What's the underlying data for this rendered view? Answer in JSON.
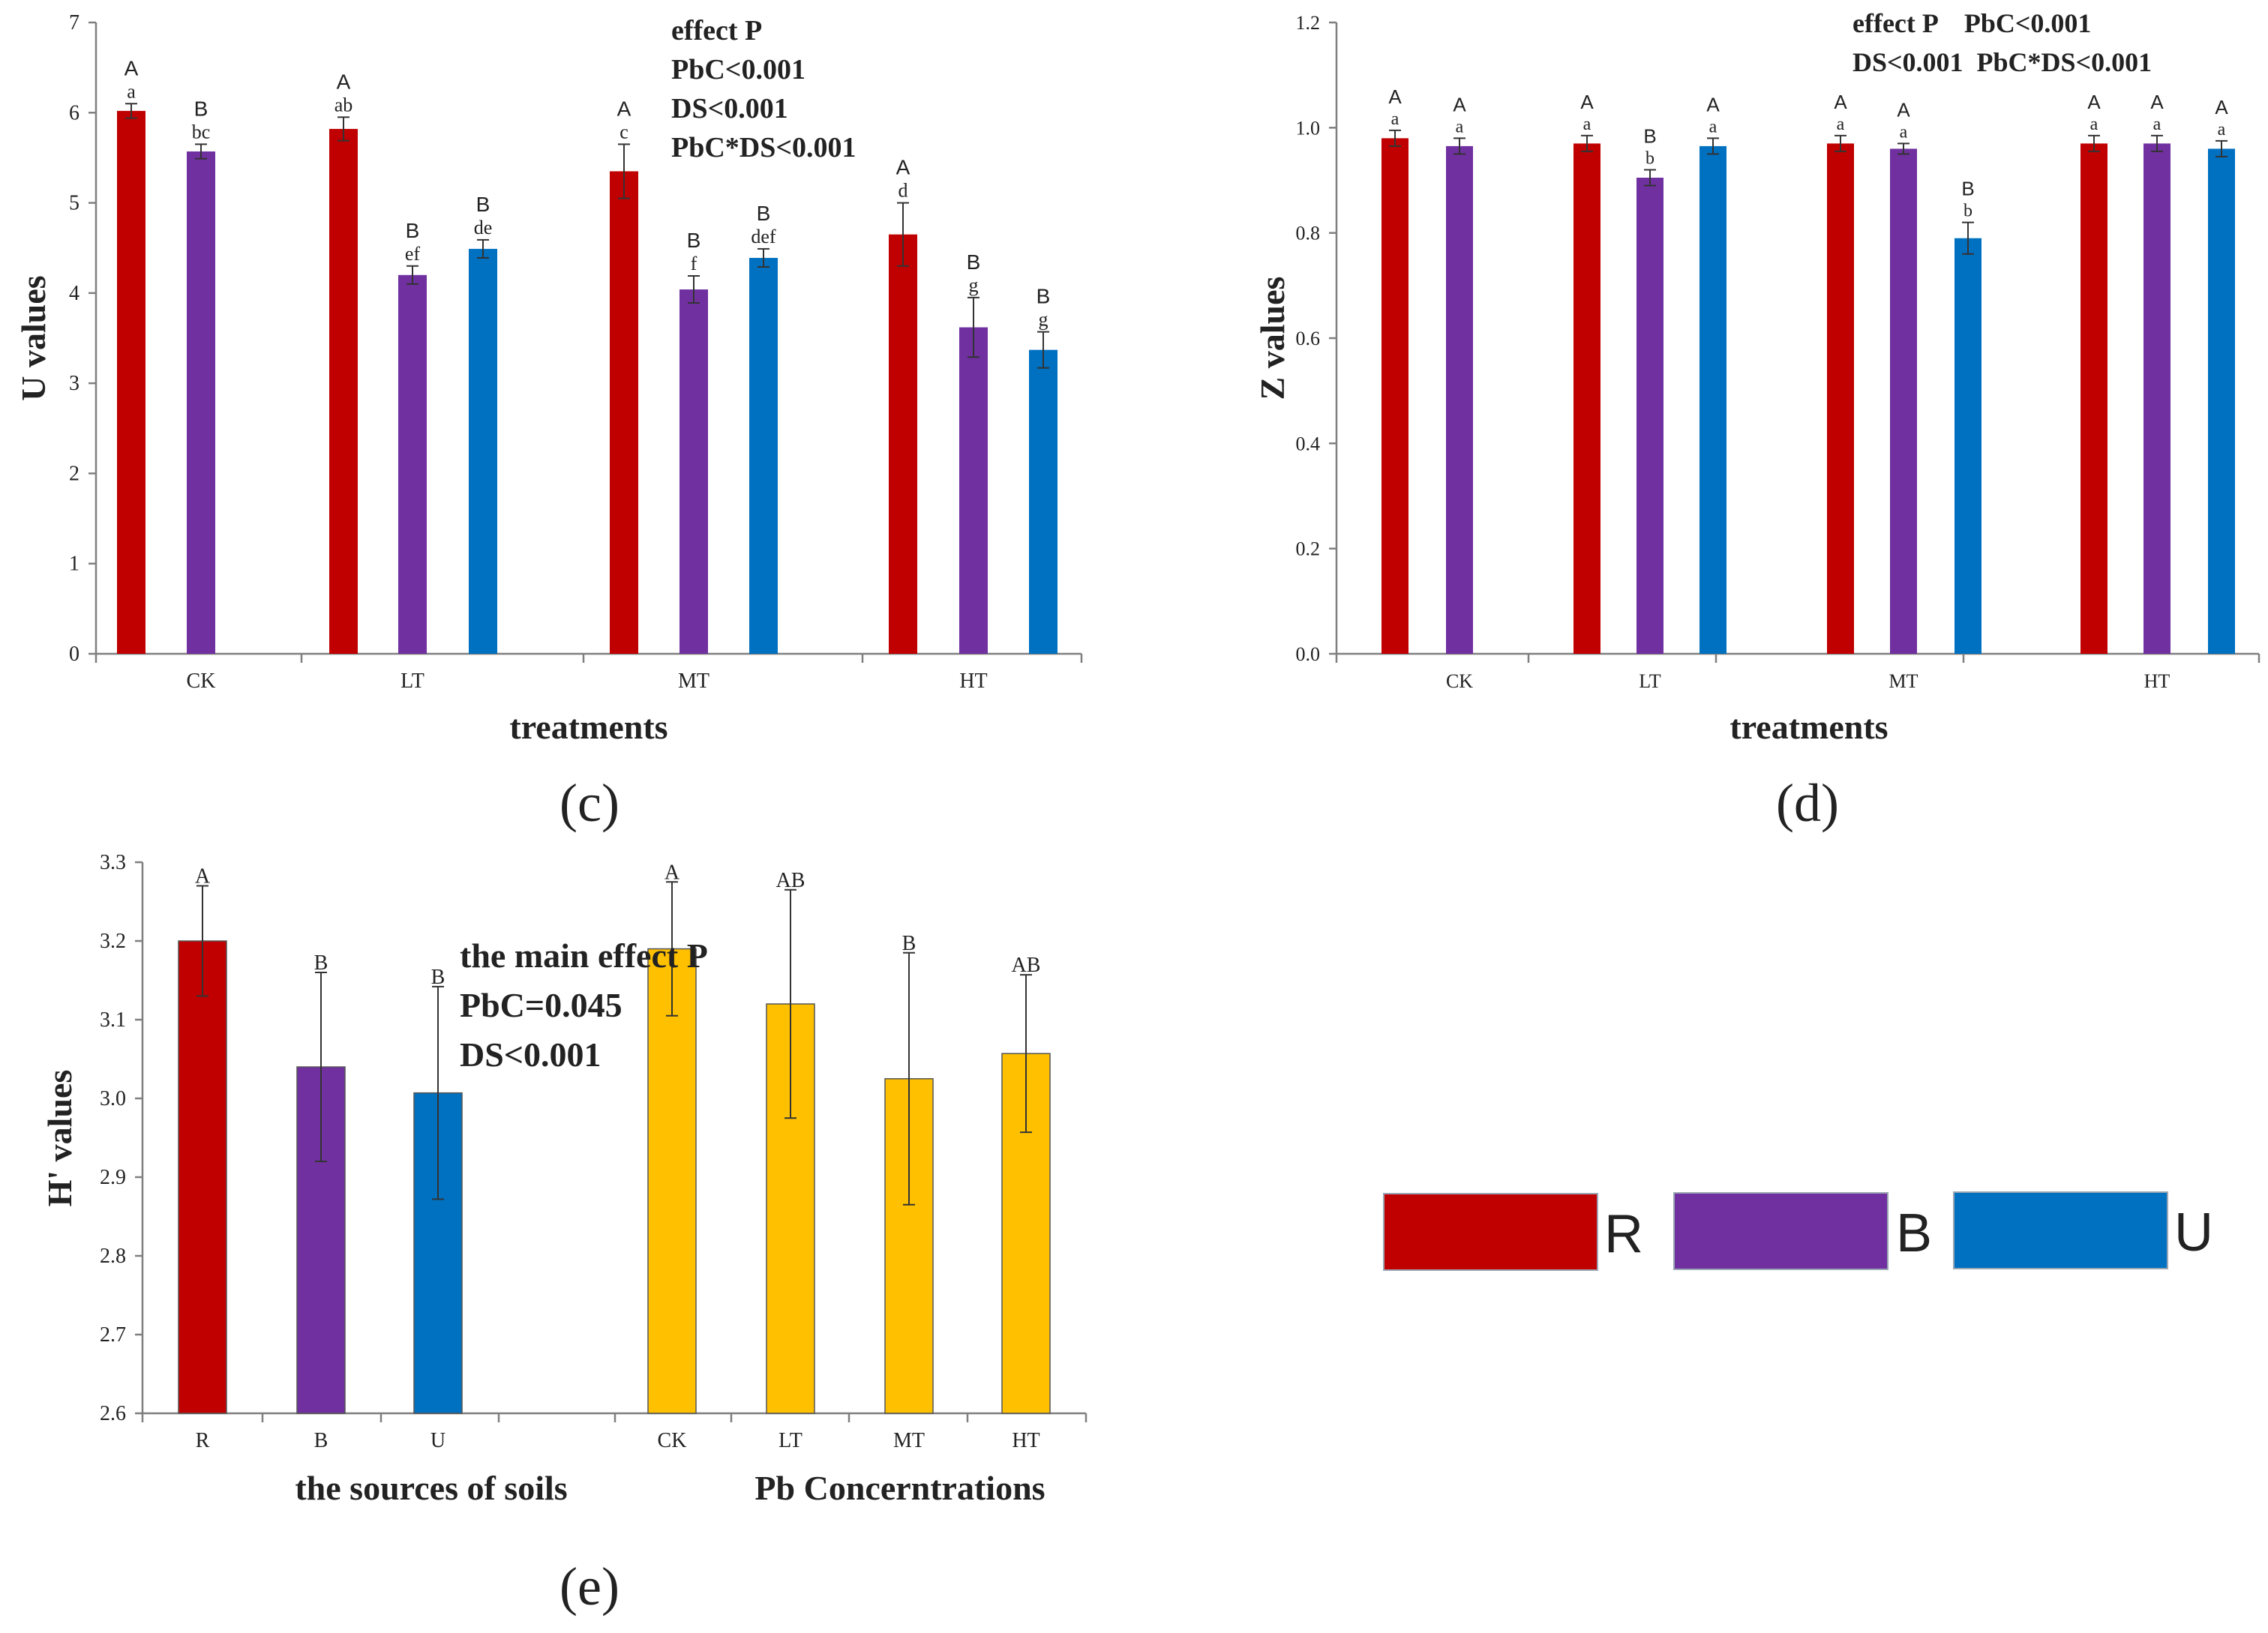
{
  "colors": {
    "R": "#C00000",
    "B": "#7030A0",
    "U": "#0070C0",
    "PbC": "#FFC000"
  },
  "legend": {
    "items": [
      "R",
      "B",
      "U"
    ]
  },
  "chart_data": [
    {
      "id": "c",
      "type": "bar",
      "panel_label": "(c)",
      "xlabel": "treatments",
      "ylabel": "U values",
      "ylim": [
        0,
        7
      ],
      "yticks": [
        "0",
        "1",
        "2",
        "3",
        "4",
        "5",
        "6",
        "7"
      ],
      "categories": [
        "CK",
        "LT",
        "MT",
        "HT"
      ],
      "series": [
        {
          "name": "R",
          "values": [
            6.02,
            5.82,
            5.35,
            4.65
          ],
          "errors": [
            0.08,
            0.13,
            0.3,
            0.35
          ],
          "upper": [
            "A",
            "A",
            "A",
            "A"
          ],
          "lower": [
            "a",
            "ab",
            "c",
            "d"
          ]
        },
        {
          "name": "B",
          "values": [
            5.57,
            4.2,
            4.04,
            3.62
          ],
          "errors": [
            0.08,
            0.1,
            0.15,
            0.33
          ],
          "upper": [
            "B",
            "B",
            "B",
            "B"
          ],
          "lower": [
            "bc",
            "ef",
            "f",
            "g"
          ]
        },
        {
          "name": "U",
          "values": [
            null,
            4.49,
            4.39,
            3.37
          ],
          "errors": [
            null,
            0.1,
            0.1,
            0.2
          ],
          "upper": [
            null,
            "B",
            "B",
            "B"
          ],
          "lower": [
            null,
            "de",
            "def",
            "g"
          ]
        }
      ],
      "annotation": [
        "effect P",
        "PbC<0.001",
        "DS<0.001",
        "PbC*DS<0.001"
      ]
    },
    {
      "id": "d",
      "type": "bar",
      "panel_label": "(d)",
      "xlabel": "treatments",
      "ylabel": "Z values",
      "ylim": [
        0,
        1.2
      ],
      "yticks": [
        "0.0",
        "0.2",
        "0.4",
        "0.6",
        "0.8",
        "1.0",
        "1.2"
      ],
      "categories": [
        "CK",
        "LT",
        "MT",
        "HT"
      ],
      "series": [
        {
          "name": "R",
          "values": [
            0.98,
            0.97,
            0.97,
            0.97
          ],
          "errors": [
            0.015,
            0.015,
            0.015,
            0.015
          ],
          "upper": [
            "A",
            "A",
            "A",
            "A"
          ],
          "lower": [
            "a",
            "a",
            "a",
            "a"
          ]
        },
        {
          "name": "B",
          "values": [
            0.965,
            0.905,
            0.96,
            0.97
          ],
          "errors": [
            0.015,
            0.015,
            0.01,
            0.015
          ],
          "upper": [
            "A",
            "B",
            "A",
            "A"
          ],
          "lower": [
            "a",
            "b",
            "a",
            "a"
          ]
        },
        {
          "name": "U",
          "values": [
            null,
            0.965,
            0.79,
            0.96
          ],
          "errors": [
            null,
            0.015,
            0.03,
            0.015
          ],
          "upper": [
            null,
            "A",
            "B",
            "A"
          ],
          "lower": [
            null,
            "a",
            "b",
            "a"
          ]
        }
      ],
      "annotation": [
        "effect P    PbC<0.001",
        "DS<0.001  PbC*DS<0.001"
      ]
    },
    {
      "id": "e",
      "type": "bar",
      "panel_label": "(e)",
      "ylabel": "H' values",
      "ylim": [
        2.6,
        3.3
      ],
      "yticks": [
        "2.6",
        "2.7",
        "2.8",
        "2.9",
        "3.0",
        "3.1",
        "3.2",
        "3.3"
      ],
      "group_labels": [
        "the sources of soils",
        "Pb Concerntrations"
      ],
      "categories": [
        "R",
        "B",
        "U",
        "CK",
        "LT",
        "MT",
        "HT"
      ],
      "values": [
        3.2,
        3.04,
        3.007,
        3.19,
        3.12,
        3.025,
        3.057
      ],
      "errors": [
        0.07,
        0.12,
        0.135,
        0.085,
        0.145,
        0.16,
        0.1
      ],
      "letters": [
        "A",
        "B",
        "B",
        "A",
        "AB",
        "B",
        "AB"
      ],
      "bar_colors": [
        "R",
        "B",
        "U",
        "PbC",
        "PbC",
        "PbC",
        "PbC"
      ],
      "annotation": [
        "the main effect P",
        "PbC=0.045",
        "DS<0.001"
      ]
    }
  ]
}
